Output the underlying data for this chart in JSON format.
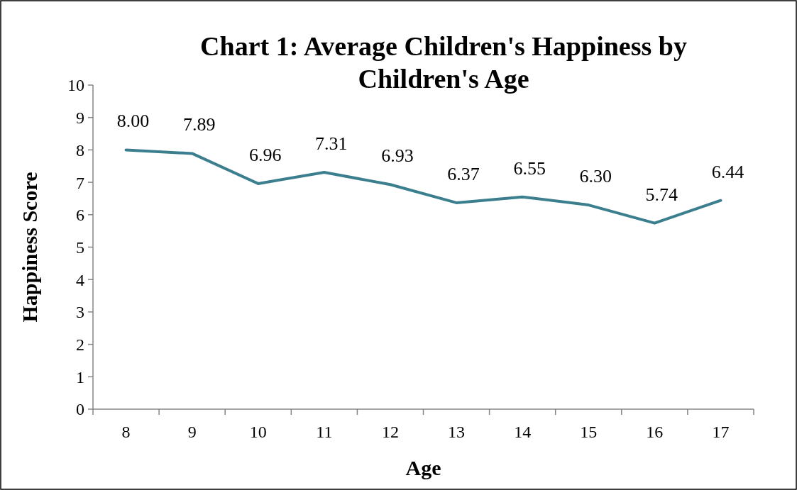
{
  "chart_data": {
    "type": "line",
    "title": "Chart 1: Average Children's Happiness by Children's Age",
    "xlabel": "Age",
    "ylabel": "Happiness Score",
    "categories": [
      "8",
      "9",
      "10",
      "11",
      "12",
      "13",
      "14",
      "15",
      "16",
      "17"
    ],
    "series": [
      {
        "color": "#3b7f8f",
        "values": [
          8.0,
          7.89,
          6.96,
          7.31,
          6.93,
          6.37,
          6.55,
          6.3,
          5.74,
          6.44
        ],
        "value_labels": [
          "8.00",
          "7.89",
          "6.96",
          "7.31",
          "6.93",
          "6.37",
          "6.55",
          "6.30",
          "5.74",
          "6.44"
        ]
      }
    ],
    "ylim": [
      0,
      10
    ],
    "yticks": [
      0,
      1,
      2,
      3,
      4,
      5,
      6,
      7,
      8,
      9,
      10
    ],
    "grid": false,
    "marker": "none",
    "line_style": "solid"
  }
}
